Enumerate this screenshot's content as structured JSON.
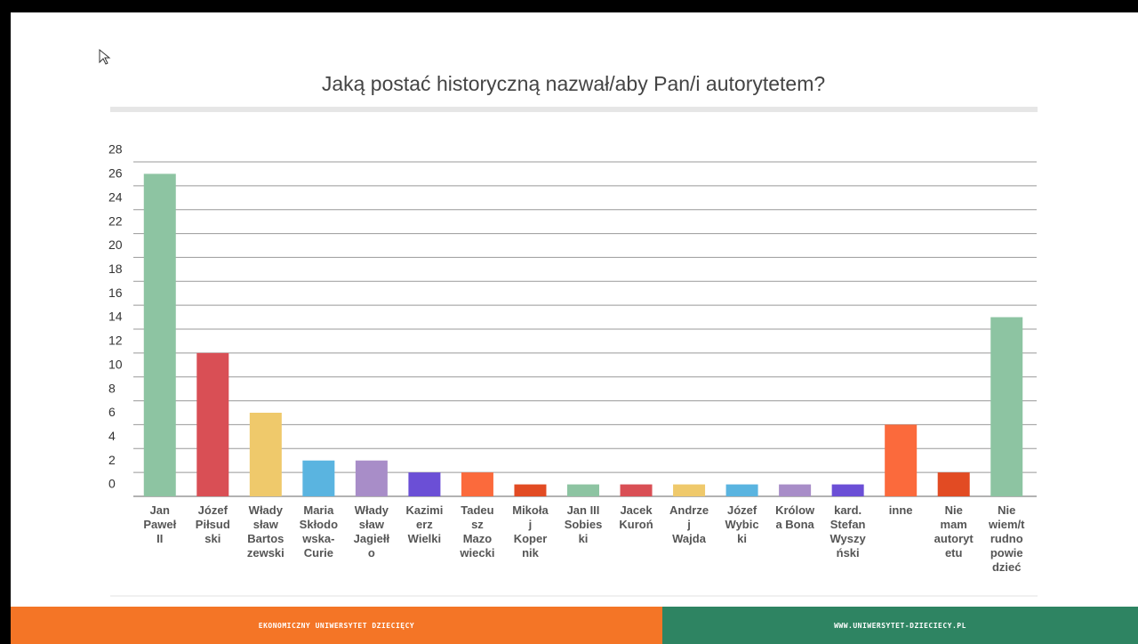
{
  "chart_data": {
    "type": "bar",
    "title": "Jaką postać historyczną nazwał/aby Pan/i autorytetem?",
    "categories": [
      "Jan\nPaweł\nII",
      "Józef\nPiłsud\nski",
      "Włady\nsław\nBartos\nzewski",
      "Maria\nSkłodo\nwska-\nCurie",
      "Włady\nsław\nJagiełł\no",
      "Kazimi\nerz\nWielki",
      "Tadeu\nsz\nMazo\nwiecki",
      "Mikoła\nj\nKoper\nnik",
      "Jan III\nSobies\nki",
      "Jacek\nKuroń",
      "Andrze\nj\nWajda",
      "Józef\nWybic\nki",
      "Królow\na Bona",
      "kard.\nStefan\nWyszy\nński",
      "inne",
      "Nie\nmam\nautoryt\netu",
      "Nie\nwiem/t\nrudno\npowie\ndzieć"
    ],
    "values": [
      27,
      12,
      7,
      3,
      3,
      2,
      2,
      1,
      1,
      1,
      1,
      1,
      1,
      1,
      6,
      2,
      15
    ],
    "colors": [
      "#8dc4a2",
      "#d94f55",
      "#efc96b",
      "#5ab4e0",
      "#a88dc8",
      "#6b4fd6",
      "#fb6a3c",
      "#e24b23",
      "#8dc4a2",
      "#d94f55",
      "#efc96b",
      "#5ab4e0",
      "#a88dc8",
      "#6b4fd6",
      "#fb6a3c",
      "#e24b23",
      "#8dc4a2"
    ],
    "ylim": [
      0,
      28
    ],
    "yticks": [
      0,
      2,
      4,
      6,
      8,
      10,
      12,
      14,
      16,
      18,
      20,
      22,
      24,
      26,
      28
    ],
    "grid": true
  },
  "footer": {
    "left": "EKONOMICZNY UNIWERSYTET DZIECIĘCY",
    "right": "WWW.UNIWERSYTET-DZIECIECY.PL"
  }
}
